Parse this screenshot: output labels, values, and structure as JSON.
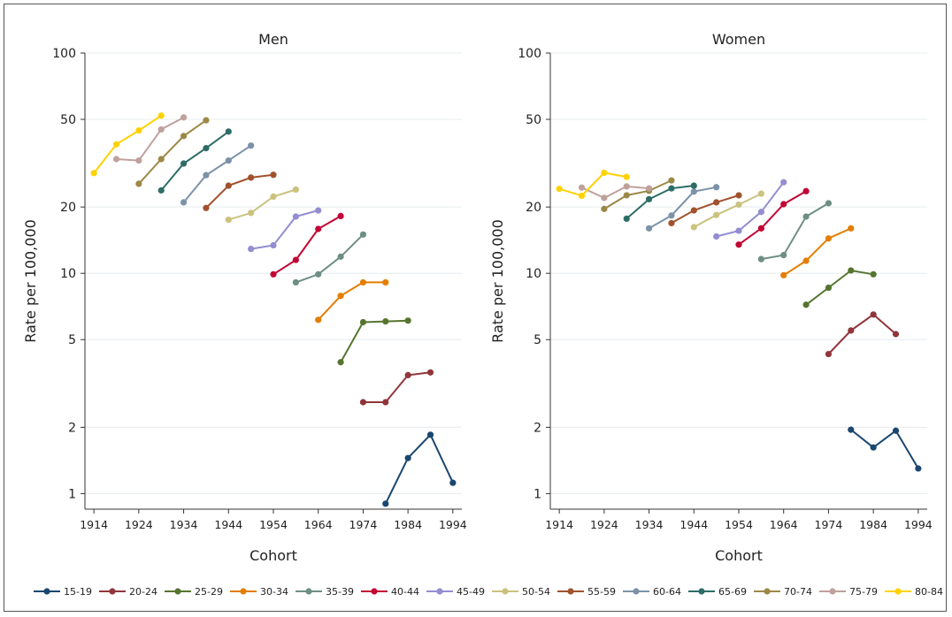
{
  "chart_data": [
    {
      "type": "line",
      "title": "Men",
      "xlabel": "Cohort",
      "ylabel": "Rate per 100,000",
      "yscale": "log",
      "ylim": [
        0.85,
        100
      ],
      "xlim": [
        1912,
        1996
      ],
      "xticks": [
        1914,
        1924,
        1934,
        1944,
        1954,
        1964,
        1974,
        1984,
        1994
      ],
      "yticks": [
        1,
        2,
        5,
        10,
        20,
        50,
        100
      ],
      "grid": "horizontal",
      "series": [
        {
          "name": "15-19",
          "x": [
            1979,
            1984,
            1989,
            1994
          ],
          "y": [
            0.9,
            1.45,
            1.85,
            1.12
          ]
        },
        {
          "name": "20-24",
          "x": [
            1974,
            1979,
            1984,
            1989
          ],
          "y": [
            2.6,
            2.6,
            3.45,
            3.55
          ]
        },
        {
          "name": "25-29",
          "x": [
            1969,
            1974,
            1979,
            1984
          ],
          "y": [
            3.95,
            6.0,
            6.05,
            6.1
          ]
        },
        {
          "name": "30-34",
          "x": [
            1964,
            1969,
            1974,
            1979
          ],
          "y": [
            6.15,
            7.9,
            9.1,
            9.1
          ]
        },
        {
          "name": "35-39",
          "x": [
            1959,
            1964,
            1969,
            1974
          ],
          "y": [
            9.1,
            9.9,
            11.9,
            15.0
          ]
        },
        {
          "name": "40-44",
          "x": [
            1954,
            1959,
            1964,
            1969
          ],
          "y": [
            9.9,
            11.5,
            15.9,
            18.2
          ]
        },
        {
          "name": "45-49",
          "x": [
            1949,
            1954,
            1959,
            1964
          ],
          "y": [
            12.9,
            13.4,
            18.1,
            19.3
          ]
        },
        {
          "name": "50-54",
          "x": [
            1944,
            1949,
            1954,
            1959
          ],
          "y": [
            17.5,
            18.8,
            22.3,
            24.0
          ]
        },
        {
          "name": "55-59",
          "x": [
            1939,
            1944,
            1949,
            1954
          ],
          "y": [
            19.8,
            25.0,
            27.2,
            28.0
          ]
        },
        {
          "name": "60-64",
          "x": [
            1934,
            1939,
            1944,
            1949
          ],
          "y": [
            21.0,
            27.9,
            32.5,
            38.0
          ]
        },
        {
          "name": "65-69",
          "x": [
            1929,
            1934,
            1939,
            1944
          ],
          "y": [
            23.8,
            31.5,
            37.0,
            44.0
          ]
        },
        {
          "name": "70-74",
          "x": [
            1924,
            1929,
            1934,
            1939
          ],
          "y": [
            25.5,
            33.0,
            42.0,
            49.5
          ]
        },
        {
          "name": "75-79",
          "x": [
            1919,
            1924,
            1929,
            1934
          ],
          "y": [
            33.0,
            32.5,
            45.0,
            51.0
          ]
        },
        {
          "name": "80-84",
          "x": [
            1914,
            1919,
            1924,
            1929
          ],
          "y": [
            28.5,
            38.5,
            44.5,
            52.0
          ]
        }
      ]
    },
    {
      "type": "line",
      "title": "Women",
      "xlabel": "Cohort",
      "ylabel": "Rate per 100,000",
      "yscale": "log",
      "ylim": [
        0.85,
        100
      ],
      "xlim": [
        1912,
        1996
      ],
      "xticks": [
        1914,
        1924,
        1934,
        1944,
        1954,
        1964,
        1974,
        1984,
        1994
      ],
      "yticks": [
        1,
        2,
        5,
        10,
        20,
        50,
        100
      ],
      "grid": "horizontal",
      "series": [
        {
          "name": "15-19",
          "x": [
            1979,
            1984,
            1989,
            1994
          ],
          "y": [
            1.95,
            1.62,
            1.93,
            1.3
          ]
        },
        {
          "name": "20-24",
          "x": [
            1974,
            1979,
            1984,
            1989
          ],
          "y": [
            4.3,
            5.5,
            6.5,
            5.3
          ]
        },
        {
          "name": "25-29",
          "x": [
            1969,
            1974,
            1979,
            1984
          ],
          "y": [
            7.2,
            8.6,
            10.3,
            9.9
          ]
        },
        {
          "name": "30-34",
          "x": [
            1964,
            1969,
            1974,
            1979
          ],
          "y": [
            9.8,
            11.4,
            14.4,
            16.0
          ]
        },
        {
          "name": "35-39",
          "x": [
            1959,
            1964,
            1969,
            1974
          ],
          "y": [
            11.6,
            12.1,
            18.1,
            20.8
          ]
        },
        {
          "name": "40-44",
          "x": [
            1954,
            1959,
            1964,
            1969
          ],
          "y": [
            13.5,
            16.0,
            20.6,
            23.6
          ]
        },
        {
          "name": "45-49",
          "x": [
            1949,
            1954,
            1959,
            1964
          ],
          "y": [
            14.7,
            15.6,
            19.0,
            25.9
          ]
        },
        {
          "name": "50-54",
          "x": [
            1944,
            1949,
            1954,
            1959
          ],
          "y": [
            16.2,
            18.4,
            20.5,
            23.0
          ]
        },
        {
          "name": "55-59",
          "x": [
            1939,
            1944,
            1949,
            1954
          ],
          "y": [
            16.9,
            19.3,
            21.0,
            22.6
          ]
        },
        {
          "name": "60-64",
          "x": [
            1934,
            1939,
            1944,
            1949
          ],
          "y": [
            16.0,
            18.3,
            23.5,
            24.6
          ]
        },
        {
          "name": "65-69",
          "x": [
            1929,
            1934,
            1939,
            1944
          ],
          "y": [
            17.7,
            21.7,
            24.3,
            25.0
          ]
        },
        {
          "name": "70-74",
          "x": [
            1924,
            1929,
            1934,
            1939
          ],
          "y": [
            19.6,
            22.6,
            23.7,
            26.4
          ]
        },
        {
          "name": "75-79",
          "x": [
            1919,
            1924,
            1929,
            1934
          ],
          "y": [
            24.5,
            22.0,
            24.8,
            24.3
          ]
        },
        {
          "name": "80-84",
          "x": [
            1914,
            1919,
            1924,
            1929
          ],
          "y": [
            24.2,
            22.5,
            28.6,
            27.4
          ]
        }
      ]
    }
  ],
  "legend": [
    {
      "name": "15-19",
      "color": "#1a476f"
    },
    {
      "name": "20-24",
      "color": "#90353b"
    },
    {
      "name": "25-29",
      "color": "#55752f"
    },
    {
      "name": "30-34",
      "color": "#e37e00"
    },
    {
      "name": "35-39",
      "color": "#6e8e84"
    },
    {
      "name": "40-44",
      "color": "#c10534"
    },
    {
      "name": "45-49",
      "color": "#938dd2"
    },
    {
      "name": "50-54",
      "color": "#cac27e"
    },
    {
      "name": "55-59",
      "color": "#a0522d"
    },
    {
      "name": "60-64",
      "color": "#7b92a8"
    },
    {
      "name": "65-69",
      "color": "#2d6d66"
    },
    {
      "name": "70-74",
      "color": "#9c8847"
    },
    {
      "name": "75-79",
      "color": "#bfa19c"
    },
    {
      "name": "80-84",
      "color": "#ffd200"
    }
  ]
}
